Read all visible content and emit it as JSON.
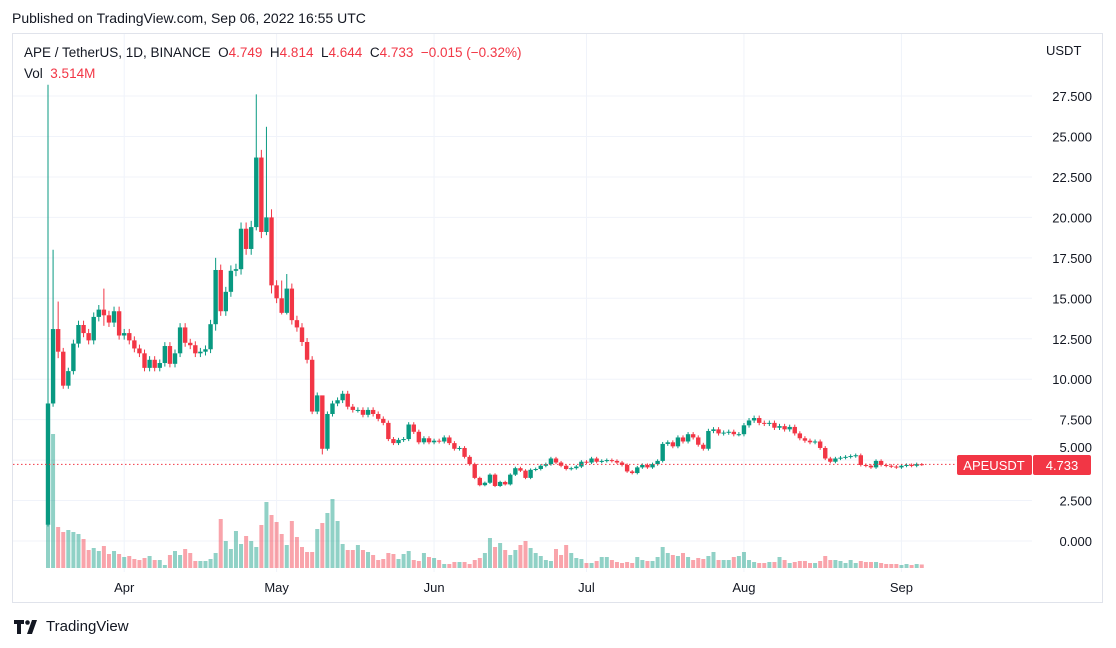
{
  "published": "Published on TradingView.com, Sep 06, 2022 16:55 UTC",
  "legend": {
    "symbol": "APE / TetherUS, 1D, BINANCE",
    "o_label": "O",
    "o": "4.749",
    "h_label": "H",
    "h": "4.814",
    "l_label": "L",
    "l": "4.644",
    "c_label": "C",
    "c": "4.733",
    "change": "−0.015 (−0.32%)",
    "vol_label": "Vol",
    "vol": "3.514M"
  },
  "price_tag": {
    "symbol": "APEUSDT",
    "value": "4.733"
  },
  "footer": {
    "brand": "TradingView"
  },
  "colors": {
    "up": "#089981",
    "down": "#f23645",
    "grid": "#f0f3fa"
  },
  "chart_data": {
    "type": "candlestick",
    "currency_label": "USDT",
    "ylim": [
      -1.9,
      28.4
    ],
    "y_ticks": [
      "27.500",
      "25.000",
      "22.500",
      "20.000",
      "17.500",
      "15.000",
      "12.500",
      "10.000",
      "7.500",
      "5.000",
      "2.500",
      "0.000"
    ],
    "x_ticks": [
      {
        "label": "Apr",
        "index": 15
      },
      {
        "label": "May",
        "index": 45
      },
      {
        "label": "Jun",
        "index": 76
      },
      {
        "label": "Jul",
        "index": 106
      },
      {
        "label": "Aug",
        "index": 137
      },
      {
        "label": "Sep",
        "index": 168
      }
    ],
    "first_open": 1.0,
    "closes": [
      8.5,
      13.1,
      11.7,
      9.6,
      10.5,
      12.2,
      13.35,
      12.85,
      12.4,
      13.85,
      14.3,
      13.95,
      13.5,
      14.2,
      12.7,
      12.85,
      12.4,
      11.9,
      11.6,
      10.7,
      11.2,
      10.7,
      11.0,
      12.05,
      10.95,
      11.6,
      13.2,
      12.25,
      12.1,
      11.6,
      11.7,
      11.85,
      13.4,
      16.75,
      14.2,
      15.4,
      16.7,
      16.8,
      19.3,
      18.05,
      19.4,
      23.7,
      19.1,
      20.0,
      15.8,
      15.0,
      14.1,
      15.6,
      13.65,
      13.2,
      12.3,
      11.2,
      8.0,
      9.0,
      5.7,
      7.85,
      8.5,
      8.7,
      9.1,
      8.3,
      8.1,
      8.1,
      7.8,
      8.1,
      7.85,
      7.55,
      7.3,
      6.3,
      6.05,
      6.25,
      6.3,
      7.2,
      6.75,
      6.1,
      6.35,
      6.1,
      6.2,
      6.15,
      6.4,
      6.05,
      5.7,
      5.75,
      5.2,
      4.75,
      3.9,
      3.45,
      3.6,
      4.1,
      3.4,
      3.65,
      3.5,
      4.1,
      4.5,
      4.35,
      3.9,
      4.4,
      4.45,
      4.65,
      4.75,
      5.1,
      4.85,
      4.65,
      4.45,
      4.5,
      4.6,
      4.9,
      4.85,
      5.1,
      4.9,
      4.95,
      5.0,
      4.95,
      4.85,
      4.7,
      4.3,
      4.2,
      4.55,
      4.7,
      4.55,
      4.75,
      4.95,
      6.0,
      6.1,
      5.85,
      6.4,
      6.15,
      6.6,
      6.4,
      5.95,
      5.7,
      6.8,
      6.9,
      6.65,
      6.7,
      6.75,
      6.6,
      6.6,
      7.15,
      7.45,
      7.6,
      7.3,
      7.25,
      7.3,
      7.0,
      7.1,
      6.9,
      7.05,
      6.65,
      6.35,
      6.2,
      6.1,
      6.15,
      5.75,
      5.1,
      4.9,
      5.1,
      5.15,
      5.2,
      5.25,
      5.3,
      4.7,
      4.65,
      4.55,
      4.95,
      4.7,
      4.65,
      4.6,
      4.55,
      4.65,
      4.7,
      4.65,
      4.749,
      4.733
    ],
    "wick_extremes": {
      "0": [
        28.2,
        0.9
      ],
      "1": [
        18.0,
        8.3
      ],
      "2": [
        14.8,
        11.3
      ],
      "11": [
        15.6,
        13.3
      ],
      "33": [
        17.5,
        13.0
      ],
      "41": [
        27.6,
        19.2
      ],
      "43": [
        25.6,
        18.9
      ],
      "44": [
        20.5,
        15.3
      ],
      "46": [
        16.1,
        14.0
      ],
      "47": [
        16.5,
        14.0
      ],
      "54": [
        7.9,
        5.35
      ],
      "172": [
        4.814,
        4.644
      ]
    },
    "default_wick_pct": 2,
    "volumes_m": [
      43,
      134,
      41,
      36,
      38,
      36,
      34,
      29,
      18,
      20,
      17,
      22,
      14,
      17,
      14,
      11,
      12,
      9,
      8,
      10,
      12,
      8,
      8,
      3,
      13,
      17,
      13,
      19,
      15,
      7,
      7,
      7,
      9,
      15,
      49,
      27,
      19,
      37,
      24,
      32,
      27,
      21,
      43,
      66,
      53,
      46,
      34,
      23,
      47,
      31,
      21,
      16,
      16,
      39,
      45,
      55,
      69,
      47,
      24,
      18,
      18,
      23,
      18,
      16,
      13,
      8,
      9,
      15,
      14,
      9,
      14,
      17,
      8,
      7,
      15,
      11,
      10,
      8,
      4,
      4,
      6,
      6,
      6,
      4,
      8,
      10,
      15,
      30,
      21,
      25,
      18,
      13,
      18,
      23,
      27,
      20,
      15,
      12,
      8,
      7,
      19,
      13,
      23,
      15,
      10,
      9,
      5,
      5,
      7,
      11,
      11,
      8,
      6,
      5,
      6,
      5,
      11,
      8,
      7,
      7,
      11,
      21,
      15,
      13,
      12,
      15,
      11,
      8,
      10,
      9,
      12,
      16,
      8,
      8,
      8,
      11,
      12,
      16,
      8,
      6,
      5,
      5,
      6,
      6,
      11,
      8,
      5,
      6,
      7,
      7,
      5,
      5,
      7,
      12,
      8,
      8,
      7,
      5,
      8,
      5,
      7,
      6,
      6,
      6,
      5,
      4,
      4,
      4,
      3,
      4,
      3,
      4,
      3.514
    ]
  }
}
